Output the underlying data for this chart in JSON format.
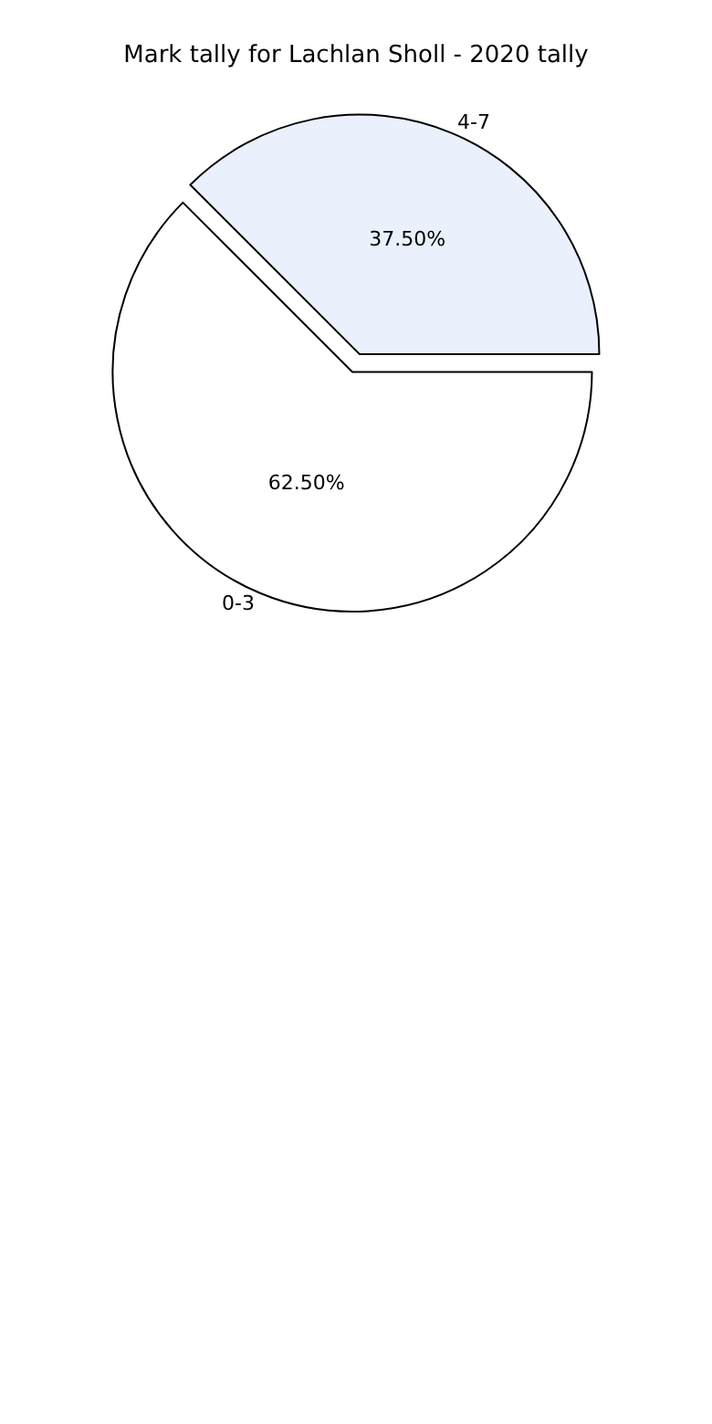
{
  "chart_data": {
    "type": "pie",
    "title": "Mark tally for Lachlan Sholl - 2020 tally",
    "categories": [
      "0-3",
      "4-7"
    ],
    "values": [
      62.5,
      37.5
    ],
    "value_labels": [
      "62.50%",
      "37.50%"
    ],
    "colors": [
      "#ffffff",
      "#eaf0fc"
    ]
  }
}
